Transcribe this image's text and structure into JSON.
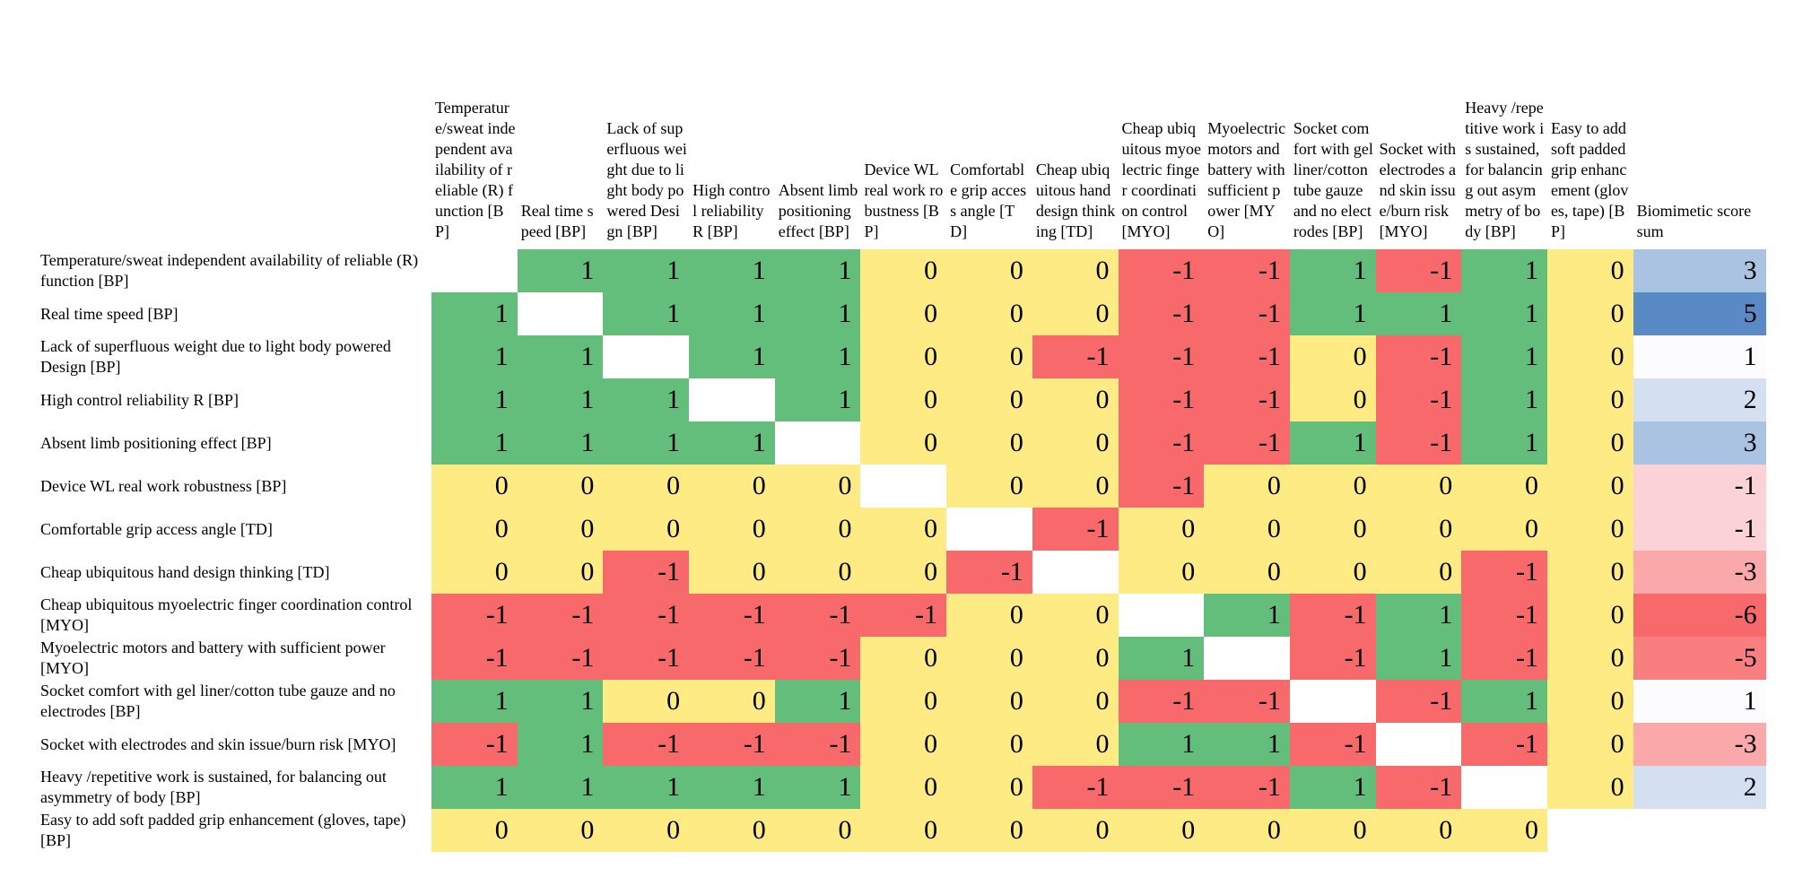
{
  "header": {
    "columns": [
      "Temperature/sweat independent availability of reliable (R) function [BP]",
      "Real time speed [BP]",
      "Lack of superfluous weight due to light body powered Design [BP]",
      "High control reliability R [BP]",
      "Absent limb positioning effect [BP]",
      "Device WL real work robustness [BP]",
      "Comfortable grip access angle [TD]",
      "Cheap ubiquitous hand design thinking [TD]",
      "Cheap ubiquitous myoelectric finger coordination control [MYO]",
      "Myoelectric motors and battery with sufficient power [MYO]",
      "Socket comfort with gel liner/cotton tube gauze and no electrodes [BP]",
      "Socket with electrodes and skin issue/burn risk [MYO]",
      "Heavy /repetitive work is sustained, for balancing out asymmetry of body [BP]",
      "Easy to add soft padded grip enhancement (gloves, tape) [BP]"
    ],
    "sum_label": "Biomimetic score sum"
  },
  "rows": [
    {
      "label": "Temperature/sweat independent availability of reliable (R) function [BP]",
      "values": [
        null,
        1,
        1,
        1,
        1,
        0,
        0,
        0,
        -1,
        -1,
        1,
        -1,
        1,
        0
      ],
      "sum": 3
    },
    {
      "label": "Real time speed [BP]",
      "values": [
        1,
        null,
        1,
        1,
        1,
        0,
        0,
        0,
        -1,
        -1,
        1,
        1,
        1,
        0
      ],
      "sum": 5
    },
    {
      "label": "Lack of superfluous weight due to light body powered Design [BP]",
      "values": [
        1,
        1,
        null,
        1,
        1,
        0,
        0,
        -1,
        -1,
        -1,
        0,
        -1,
        1,
        0
      ],
      "sum": 1
    },
    {
      "label": "High control reliability R [BP]",
      "values": [
        1,
        1,
        1,
        null,
        1,
        0,
        0,
        0,
        -1,
        -1,
        0,
        -1,
        1,
        0
      ],
      "sum": 2
    },
    {
      "label": "Absent limb positioning effect [BP]",
      "values": [
        1,
        1,
        1,
        1,
        null,
        0,
        0,
        0,
        -1,
        -1,
        1,
        -1,
        1,
        0
      ],
      "sum": 3
    },
    {
      "label": "Device WL real work robustness [BP]",
      "values": [
        0,
        0,
        0,
        0,
        0,
        null,
        0,
        0,
        -1,
        0,
        0,
        0,
        0,
        0
      ],
      "sum": -1
    },
    {
      "label": "Comfortable grip access angle [TD]",
      "values": [
        0,
        0,
        0,
        0,
        0,
        0,
        null,
        -1,
        0,
        0,
        0,
        0,
        0,
        0
      ],
      "sum": -1
    },
    {
      "label": "Cheap ubiquitous hand design thinking [TD]",
      "values": [
        0,
        0,
        -1,
        0,
        0,
        0,
        -1,
        null,
        0,
        0,
        0,
        0,
        -1,
        0
      ],
      "sum": -3
    },
    {
      "label": "Cheap ubiquitous myoelectric finger coordination control [MYO]",
      "values": [
        -1,
        -1,
        -1,
        -1,
        -1,
        -1,
        0,
        0,
        null,
        1,
        -1,
        1,
        -1,
        0
      ],
      "sum": -6
    },
    {
      "label": "Myoelectric motors and battery with sufficient power [MYO]",
      "values": [
        -1,
        -1,
        -1,
        -1,
        -1,
        0,
        0,
        0,
        1,
        null,
        -1,
        1,
        -1,
        0
      ],
      "sum": -5
    },
    {
      "label": "Socket comfort with gel liner/cotton tube gauze and no electrodes [BP]",
      "values": [
        1,
        1,
        0,
        0,
        1,
        0,
        0,
        0,
        -1,
        -1,
        null,
        -1,
        1,
        0
      ],
      "sum": 1
    },
    {
      "label": "Socket with electrodes and skin issue/burn risk [MYO]",
      "values": [
        -1,
        1,
        -1,
        -1,
        -1,
        0,
        0,
        0,
        1,
        1,
        -1,
        null,
        -1,
        0
      ],
      "sum": -3
    },
    {
      "label": "Heavy /repetitive work is sustained, for balancing out asymmetry of body [BP]",
      "values": [
        1,
        1,
        1,
        1,
        1,
        0,
        0,
        -1,
        -1,
        -1,
        1,
        -1,
        null,
        0
      ],
      "sum": 2
    },
    {
      "label": "Easy to add soft padded grip enhancement (gloves, tape) [BP]",
      "values": [
        0,
        0,
        0,
        0,
        0,
        0,
        0,
        0,
        0,
        0,
        0,
        0,
        0,
        null
      ]
    }
  ]
}
